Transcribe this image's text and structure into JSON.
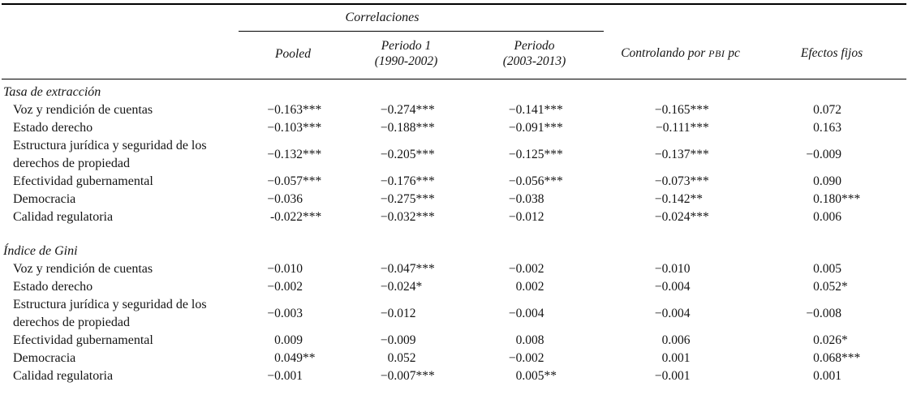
{
  "table": {
    "spanner_label": "Correlaciones",
    "columns": {
      "pooled": {
        "line1": "Pooled",
        "line2": ""
      },
      "periodo1": {
        "line1": "Periodo 1",
        "line2": "(1990-2002)"
      },
      "periodo2": {
        "line1": "Periodo",
        "line2": "(2003-2013)"
      },
      "control": {
        "pre": "Controlando por",
        "acronym": "PBI",
        "post": "pc"
      },
      "efectos": {
        "line1": "Efectos fijos",
        "line2": ""
      }
    },
    "sections": [
      {
        "title": "Tasa de extracción",
        "rows": [
          {
            "label": "Voz y rendición de cuentas",
            "values": [
              [
                "−0.163",
                "***"
              ],
              [
                "−0.274",
                "***"
              ],
              [
                "−0.141",
                "***"
              ],
              [
                "−0.165",
                "***"
              ],
              [
                "0.072",
                ""
              ]
            ]
          },
          {
            "label": "Estado derecho",
            "values": [
              [
                "−0.103",
                "***"
              ],
              [
                "−0.188",
                "***"
              ],
              [
                "−0.091",
                "***"
              ],
              [
                "−0.111",
                "***"
              ],
              [
                "0.163",
                ""
              ]
            ]
          },
          {
            "label": "Estructura jurídica y seguridad de los derechos de propiedad",
            "values": [
              [
                "−0.132",
                "***"
              ],
              [
                "−0.205",
                "***"
              ],
              [
                "−0.125",
                "***"
              ],
              [
                "−0.137",
                "***"
              ],
              [
                "−0.009",
                ""
              ]
            ]
          },
          {
            "label": "Efectividad gubernamental",
            "values": [
              [
                "−0.057",
                "***"
              ],
              [
                "−0.176",
                "***"
              ],
              [
                "−0.056",
                "***"
              ],
              [
                "−0.073",
                "***"
              ],
              [
                "0.090",
                ""
              ]
            ]
          },
          {
            "label": "Democracia",
            "values": [
              [
                "−0.036",
                ""
              ],
              [
                "−0.275",
                "***"
              ],
              [
                "−0.038",
                ""
              ],
              [
                "−0.142",
                "**"
              ],
              [
                "0.180",
                "***"
              ]
            ]
          },
          {
            "label": "Calidad regulatoria",
            "values": [
              [
                "-0.022",
                "***"
              ],
              [
                "−0.032",
                "***"
              ],
              [
                "−0.012",
                ""
              ],
              [
                "−0.024",
                "***"
              ],
              [
                "0.006",
                ""
              ]
            ]
          }
        ]
      },
      {
        "title": "Índice de Gini",
        "rows": [
          {
            "label": "Voz y rendición de cuentas",
            "values": [
              [
                "−0.010",
                ""
              ],
              [
                "−0.047",
                "***"
              ],
              [
                "−0.002",
                ""
              ],
              [
                "−0.010",
                ""
              ],
              [
                "0.005",
                ""
              ]
            ]
          },
          {
            "label": "Estado derecho",
            "values": [
              [
                "−0.002",
                ""
              ],
              [
                "−0.024",
                "*"
              ],
              [
                "0.002",
                ""
              ],
              [
                "−0.004",
                ""
              ],
              [
                "0.052",
                "*"
              ]
            ]
          },
          {
            "label": "Estructura jurídica y seguridad de los derechos de propiedad",
            "values": [
              [
                "−0.003",
                ""
              ],
              [
                "−0.012",
                ""
              ],
              [
                "−0.004",
                ""
              ],
              [
                "−0.004",
                ""
              ],
              [
                "−0.008",
                ""
              ]
            ]
          },
          {
            "label": "Efectividad gubernamental",
            "values": [
              [
                "0.009",
                ""
              ],
              [
                "−0.009",
                ""
              ],
              [
                "0.008",
                ""
              ],
              [
                "0.006",
                ""
              ],
              [
                "0.026",
                "*"
              ]
            ]
          },
          {
            "label": "Democracia",
            "values": [
              [
                "0.049",
                "**"
              ],
              [
                "0.052",
                ""
              ],
              [
                "−0.002",
                ""
              ],
              [
                "0.001",
                ""
              ],
              [
                "0.068",
                "***"
              ]
            ]
          },
          {
            "label": "Calidad regulatoria",
            "values": [
              [
                "−0.001",
                ""
              ],
              [
                "−0.007",
                "***"
              ],
              [
                "0.005",
                "**"
              ],
              [
                "−0.001",
                ""
              ],
              [
                "0.001",
                ""
              ]
            ]
          }
        ]
      }
    ],
    "colors": {
      "text": "#141414",
      "rule": "#000000",
      "background": "#ffffff"
    }
  }
}
